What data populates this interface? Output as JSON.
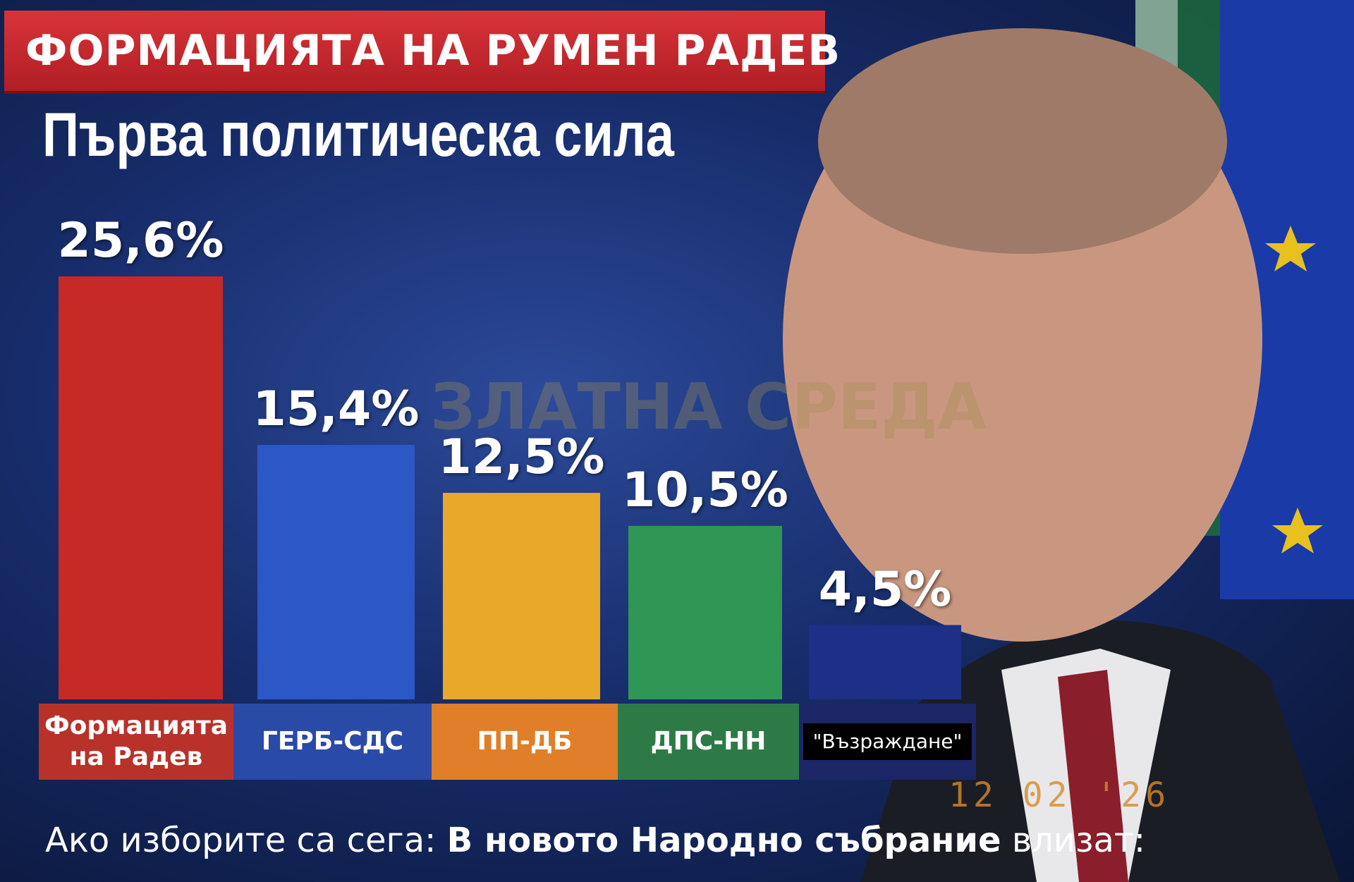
{
  "chart_data": {
    "type": "bar",
    "title": "ФОРМАЦИЯТА НА РУМЕН РАДЕВ",
    "subtitle": "Първа политическа сила",
    "categories": [
      "Формацията на Радев",
      "ГЕРБ-СДС",
      "ПП-ДБ",
      "ДПС-НН",
      "\"Възраждане\""
    ],
    "values": [
      25.6,
      15.4,
      12.5,
      10.5,
      4.5
    ],
    "value_labels": [
      "25,6%",
      "15,4%",
      "12,5%",
      "10,5%",
      "4,5%"
    ],
    "colors": [
      "#c62a26",
      "#2b58c4",
      "#e8a82a",
      "#2f9656",
      "#1d2f86"
    ],
    "footnote": [
      "Ако изборите са сега:",
      "В новото Народно събрание",
      "влизат:"
    ],
    "watermark": "ЗЛАТНА СРЕДА",
    "date_stamp": "12 02 '26"
  }
}
